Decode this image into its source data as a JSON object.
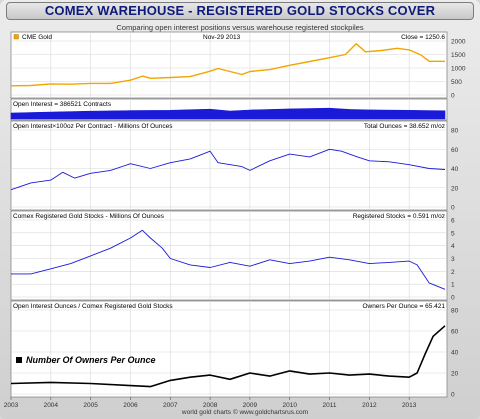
{
  "page": {
    "title": "COMEX WAREHOUSE - REGISTERED GOLD STOCKS COVER",
    "subtitle": "Comparing open interest positions versus warehouse registered stockpiles",
    "footer": "world gold charts © www.goldchartsrus.com"
  },
  "colors": {
    "gold": "#f2a600",
    "blue": "#1a1ad8",
    "black": "#000000",
    "title": "#0e1a7a"
  },
  "chart_data": [
    {
      "type": "line",
      "name": "panel-cme-gold",
      "legend": "CME Gold",
      "date_label": "Nov-29  2013",
      "value_label": "Close = 1250.6",
      "ylim": [
        0,
        2000
      ],
      "yticks": [
        0,
        500,
        1000,
        1500,
        2000
      ],
      "color": "#f2a600",
      "x": [
        2003.0,
        2003.5,
        2004.0,
        2004.5,
        2005.0,
        2005.5,
        2006.0,
        2006.3,
        2006.5,
        2007.0,
        2007.5,
        2008.0,
        2008.2,
        2008.8,
        2009.0,
        2009.5,
        2010.0,
        2010.5,
        2011.0,
        2011.4,
        2011.67,
        2011.9,
        2012.3,
        2012.7,
        2013.0,
        2013.3,
        2013.5,
        2013.9
      ],
      "y": [
        340,
        350,
        410,
        400,
        430,
        430,
        550,
        700,
        620,
        650,
        680,
        880,
        980,
        760,
        870,
        940,
        1100,
        1240,
        1380,
        1500,
        1900,
        1600,
        1650,
        1730,
        1670,
        1480,
        1250,
        1250
      ]
    },
    {
      "type": "area",
      "name": "panel-open-interest",
      "value_label": "Open Interest = 386521 Contracts",
      "color": "#1a1ad8",
      "x": [
        2003.0,
        2004.0,
        2005.0,
        2006.0,
        2007.0,
        2008.0,
        2008.5,
        2009.0,
        2010.0,
        2011.0,
        2011.5,
        2012.0,
        2013.0,
        2013.9
      ],
      "y": [
        0.5,
        0.58,
        0.65,
        0.7,
        0.72,
        0.82,
        0.66,
        0.75,
        0.84,
        0.9,
        0.8,
        0.76,
        0.72,
        0.68
      ]
    },
    {
      "type": "line",
      "name": "panel-total-ounces",
      "label": "Open Interest×100oz Per Contract - Millions Of Ounces",
      "value_label": "Total Ounces = 38.652 m/oz",
      "ylim": [
        0,
        80
      ],
      "yticks": [
        0,
        20,
        40,
        60,
        80
      ],
      "color": "#1a1ad8",
      "x": [
        2003.0,
        2003.5,
        2004.0,
        2004.3,
        2004.6,
        2005.0,
        2005.5,
        2006.0,
        2006.5,
        2007.0,
        2007.5,
        2008.0,
        2008.2,
        2008.8,
        2009.0,
        2009.5,
        2010.0,
        2010.5,
        2011.0,
        2011.3,
        2011.7,
        2012.0,
        2012.5,
        2013.0,
        2013.5,
        2013.9
      ],
      "y": [
        18,
        25,
        28,
        36,
        30,
        35,
        38,
        45,
        40,
        46,
        50,
        58,
        46,
        42,
        38,
        48,
        55,
        52,
        60,
        58,
        52,
        48,
        47,
        44,
        40,
        39
      ]
    },
    {
      "type": "line",
      "name": "panel-registered-stocks",
      "label": "Comex Registered Gold Stocks - Millions Of Ounces",
      "value_label": "Registered Stocks = 0.591 m/oz",
      "ylim": [
        0,
        6
      ],
      "yticks": [
        0,
        1,
        2,
        3,
        4,
        5,
        6
      ],
      "color": "#1a1ad8",
      "x": [
        2003.0,
        2003.5,
        2004.0,
        2004.5,
        2005.0,
        2005.5,
        2006.0,
        2006.3,
        2006.5,
        2006.8,
        2007.0,
        2007.5,
        2008.0,
        2008.5,
        2009.0,
        2009.5,
        2010.0,
        2010.5,
        2011.0,
        2011.5,
        2012.0,
        2012.5,
        2013.0,
        2013.2,
        2013.5,
        2013.9
      ],
      "y": [
        1.8,
        1.8,
        2.2,
        2.6,
        3.2,
        3.8,
        4.6,
        5.2,
        4.6,
        3.8,
        3.0,
        2.5,
        2.3,
        2.7,
        2.4,
        2.9,
        2.6,
        2.8,
        3.1,
        2.9,
        2.6,
        2.7,
        2.8,
        2.5,
        1.1,
        0.6
      ]
    },
    {
      "type": "line",
      "name": "panel-owners-per-ounce",
      "label": "Open Interest Ounces / Comex Registered Gold Stocks",
      "value_label": "Owners Per Ounce = 65.421",
      "legend": "Number Of Owners Per Ounce",
      "ylim": [
        0,
        80
      ],
      "yticks": [
        0,
        20,
        40,
        60,
        80
      ],
      "color": "#000000",
      "x": [
        2003.0,
        2004.0,
        2005.0,
        2006.0,
        2006.5,
        2007.0,
        2007.5,
        2008.0,
        2008.5,
        2009.0,
        2009.5,
        2010.0,
        2010.5,
        2011.0,
        2011.5,
        2012.0,
        2012.5,
        2013.0,
        2013.2,
        2013.4,
        2013.6,
        2013.9
      ],
      "y": [
        10,
        11,
        10,
        8,
        7,
        13,
        16,
        18,
        14,
        20,
        17,
        22,
        19,
        20,
        18,
        19,
        17,
        16,
        20,
        38,
        55,
        65
      ]
    }
  ],
  "x_axis": {
    "range": [
      2003.0,
      2013.95
    ],
    "ticks": [
      "2003",
      "2004",
      "2005",
      "2006",
      "2007",
      "2008",
      "2009",
      "2010",
      "2011",
      "2012",
      "2013"
    ]
  }
}
